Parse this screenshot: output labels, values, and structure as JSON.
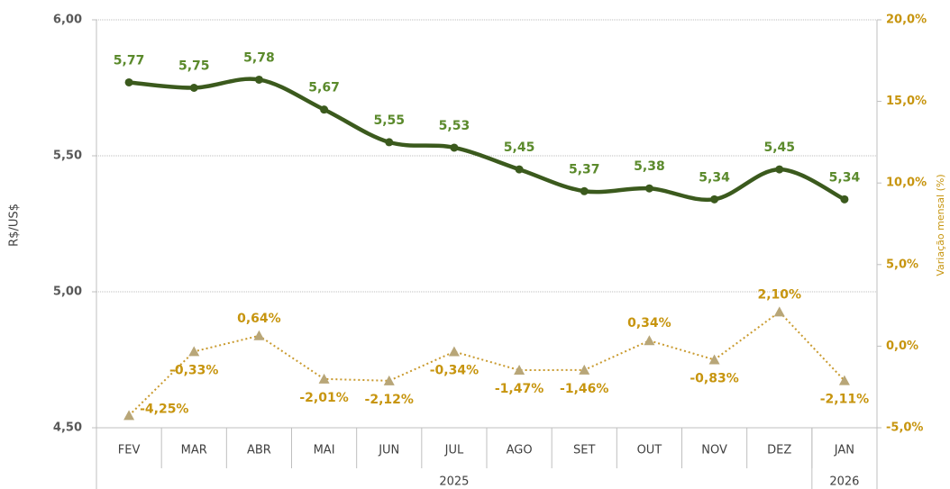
{
  "chart_data": {
    "type": "line",
    "y_label": "R$/US$",
    "y2_label": "Variação mensal (%)",
    "categories": [
      "FEV",
      "MAR",
      "ABR",
      "MAI",
      "JUN",
      "JUL",
      "AGO",
      "SET",
      "OUT",
      "NOV",
      "DEZ",
      "JAN"
    ],
    "x_groups": [
      {
        "label": "2025",
        "start": 0,
        "end": 10
      },
      {
        "label": "2026",
        "start": 11,
        "end": 11
      }
    ],
    "series": [
      {
        "name": "R$/US$",
        "color": "#3b5a1d",
        "label_color": "#5b8a2c",
        "smooth": true,
        "values": [
          5.77,
          5.75,
          5.78,
          5.67,
          5.55,
          5.53,
          5.45,
          5.37,
          5.38,
          5.34,
          5.45,
          5.34
        ],
        "value_labels": [
          "5,77",
          "5,75",
          "5,78",
          "5,67",
          "5,55",
          "5,53",
          "5,45",
          "5,37",
          "5,38",
          "5,34",
          "5,45",
          "5,34"
        ]
      },
      {
        "name": "Variação mensal (%)",
        "color": "#c99a2e",
        "marker_color": "#b8a678",
        "label_color": "#c7950f",
        "axis": "y2",
        "dotted": true,
        "values": [
          -4.25,
          -0.33,
          0.64,
          -2.01,
          -2.12,
          -0.34,
          -1.47,
          -1.46,
          0.34,
          -0.83,
          2.1,
          -2.11
        ],
        "value_labels": [
          "-4,25%",
          "-0,33%",
          "0,64%",
          "-2,01%",
          "-2,12%",
          "-0,34%",
          "-1,47%",
          "-1,46%",
          "0,34%",
          "-0,83%",
          "2,10%",
          "-2,11%"
        ]
      }
    ],
    "ylim": [
      4.5,
      6.0
    ],
    "yticks": [
      {
        "value": 4.5,
        "label": "4,50"
      },
      {
        "value": 5.0,
        "label": "5,00"
      },
      {
        "value": 5.5,
        "label": "5,50"
      },
      {
        "value": 6.0,
        "label": "6,00"
      }
    ],
    "y2lim": [
      -5,
      20
    ],
    "y2ticks": [
      {
        "value": -5,
        "label": "-5,0%"
      },
      {
        "value": 0,
        "label": "0,0%"
      },
      {
        "value": 5,
        "label": "5,0%"
      },
      {
        "value": 10,
        "label": "10,0%"
      },
      {
        "value": 15,
        "label": "15,0%"
      },
      {
        "value": 20,
        "label": "20,0%"
      }
    ],
    "grid": true
  }
}
